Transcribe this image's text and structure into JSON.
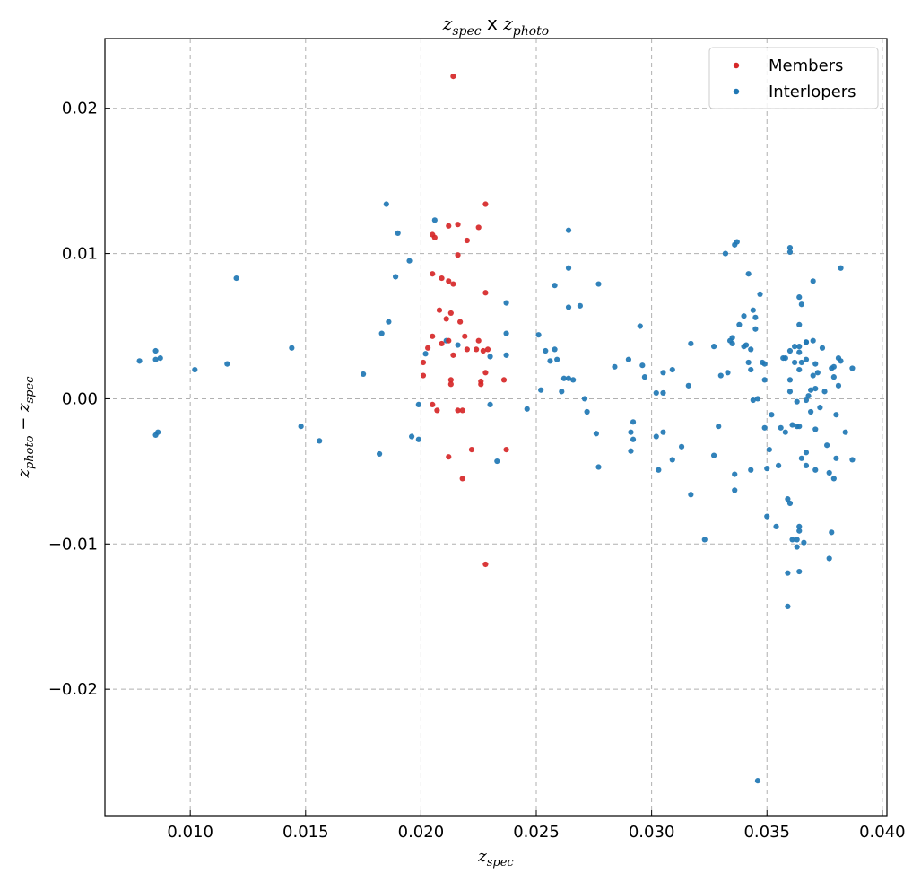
{
  "chart_data": {
    "type": "scatter",
    "title_main": "z",
    "title_sub1": "spec",
    "title_x": " x ",
    "title_sub2": "photo",
    "xlabel_main": "z",
    "xlabel_sub": "spec",
    "ylabel_main1": "z",
    "ylabel_sub1": "photo",
    "ylabel_op": " − ",
    "ylabel_main2": "z",
    "ylabel_sub2": "spec",
    "xlim": [
      0.0063,
      0.0402
    ],
    "ylim": [
      -0.0287,
      0.0248
    ],
    "xticks": [
      0.01,
      0.015,
      0.02,
      0.025,
      0.03,
      0.035,
      0.04
    ],
    "xtick_labels": [
      "0.010",
      "0.015",
      "0.020",
      "0.025",
      "0.030",
      "0.035",
      "0.040"
    ],
    "yticks": [
      0.02,
      0.01,
      0.0,
      -0.01,
      -0.02
    ],
    "ytick_labels": [
      "0.02",
      "0.01",
      "0.00",
      "−0.01",
      "−0.02"
    ],
    "grid": true,
    "legend_position": "top-right",
    "series": [
      {
        "name": "Members",
        "color": "#d62728",
        "points": [
          [
            0.0214,
            0.0222
          ],
          [
            0.0228,
            0.0134
          ],
          [
            0.0205,
            0.0113
          ],
          [
            0.0206,
            0.0111
          ],
          [
            0.0216,
            0.012
          ],
          [
            0.0212,
            0.0119
          ],
          [
            0.0225,
            0.0118
          ],
          [
            0.022,
            0.0109
          ],
          [
            0.0216,
            0.0099
          ],
          [
            0.0205,
            0.0086
          ],
          [
            0.0209,
            0.0083
          ],
          [
            0.0212,
            0.0081
          ],
          [
            0.0214,
            0.0079
          ],
          [
            0.0228,
            0.0073
          ],
          [
            0.0208,
            0.0061
          ],
          [
            0.0213,
            0.0059
          ],
          [
            0.0211,
            0.0055
          ],
          [
            0.0217,
            0.0053
          ],
          [
            0.0205,
            0.0043
          ],
          [
            0.0219,
            0.0043
          ],
          [
            0.0212,
            0.004
          ],
          [
            0.0225,
            0.004
          ],
          [
            0.0209,
            0.0038
          ],
          [
            0.0203,
            0.0035
          ],
          [
            0.022,
            0.0034
          ],
          [
            0.0224,
            0.0034
          ],
          [
            0.0227,
            0.0033
          ],
          [
            0.0229,
            0.0034
          ],
          [
            0.0214,
            0.003
          ],
          [
            0.0201,
            0.0025
          ],
          [
            0.0228,
            0.0018
          ],
          [
            0.0201,
            0.0016
          ],
          [
            0.0236,
            0.0013
          ],
          [
            0.0213,
            0.0013
          ],
          [
            0.0213,
            0.001
          ],
          [
            0.0226,
            0.0012
          ],
          [
            0.0226,
            0.001
          ],
          [
            0.0205,
            -0.0004
          ],
          [
            0.0207,
            -0.0008
          ],
          [
            0.0216,
            -0.0008
          ],
          [
            0.0218,
            -0.0008
          ],
          [
            0.0222,
            -0.0035
          ],
          [
            0.0237,
            -0.0035
          ],
          [
            0.0212,
            -0.004
          ],
          [
            0.0218,
            -0.0055
          ],
          [
            0.0228,
            -0.0114
          ]
        ]
      },
      {
        "name": "Interlopers",
        "color": "#1f77b4",
        "points": [
          [
            0.0078,
            0.0026
          ],
          [
            0.0085,
            0.0033
          ],
          [
            0.0085,
            0.0027
          ],
          [
            0.0087,
            0.0028
          ],
          [
            0.0085,
            -0.0025
          ],
          [
            0.0086,
            -0.0023
          ],
          [
            0.0102,
            0.002
          ],
          [
            0.0116,
            0.0024
          ],
          [
            0.012,
            0.0083
          ],
          [
            0.0144,
            0.0035
          ],
          [
            0.0148,
            -0.0019
          ],
          [
            0.0156,
            -0.0029
          ],
          [
            0.0175,
            0.0017
          ],
          [
            0.0183,
            0.0045
          ],
          [
            0.0182,
            -0.0038
          ],
          [
            0.0185,
            0.0134
          ],
          [
            0.0186,
            0.0053
          ],
          [
            0.0189,
            0.0084
          ],
          [
            0.019,
            0.0114
          ],
          [
            0.0195,
            0.0095
          ],
          [
            0.0196,
            -0.0026
          ],
          [
            0.0199,
            -0.0004
          ],
          [
            0.0199,
            -0.0028
          ],
          [
            0.0202,
            0.0031
          ],
          [
            0.0206,
            0.0123
          ],
          [
            0.0211,
            0.004
          ],
          [
            0.0216,
            0.0037
          ],
          [
            0.023,
            0.0029
          ],
          [
            0.023,
            -0.0004
          ],
          [
            0.0233,
            -0.0043
          ],
          [
            0.0237,
            0.0066
          ],
          [
            0.0237,
            0.0045
          ],
          [
            0.0237,
            0.003
          ],
          [
            0.0246,
            -0.0007
          ],
          [
            0.0251,
            0.0044
          ],
          [
            0.0252,
            0.0006
          ],
          [
            0.0254,
            0.0033
          ],
          [
            0.0256,
            0.0026
          ],
          [
            0.0258,
            0.0078
          ],
          [
            0.0258,
            0.0034
          ],
          [
            0.0259,
            0.0027
          ],
          [
            0.0261,
            0.0005
          ],
          [
            0.0262,
            0.0014
          ],
          [
            0.0264,
            0.0116
          ],
          [
            0.0264,
            0.009
          ],
          [
            0.0264,
            0.0063
          ],
          [
            0.0264,
            0.0014
          ],
          [
            0.0266,
            0.0013
          ],
          [
            0.0269,
            0.0064
          ],
          [
            0.0271,
            0.0
          ],
          [
            0.0272,
            -0.0009
          ],
          [
            0.0276,
            -0.0024
          ],
          [
            0.0277,
            0.0079
          ],
          [
            0.0277,
            -0.0047
          ],
          [
            0.0284,
            0.0022
          ],
          [
            0.029,
            0.0027
          ],
          [
            0.0291,
            -0.0023
          ],
          [
            0.0292,
            -0.0016
          ],
          [
            0.0292,
            -0.0028
          ],
          [
            0.0291,
            -0.0036
          ],
          [
            0.0295,
            0.005
          ],
          [
            0.0296,
            0.0023
          ],
          [
            0.0297,
            0.0015
          ],
          [
            0.0302,
            0.0004
          ],
          [
            0.0302,
            -0.0026
          ],
          [
            0.0303,
            -0.0049
          ],
          [
            0.0305,
            0.0004
          ],
          [
            0.0305,
            -0.0023
          ],
          [
            0.0305,
            0.0018
          ],
          [
            0.0309,
            0.002
          ],
          [
            0.0309,
            -0.0042
          ],
          [
            0.0313,
            -0.0033
          ],
          [
            0.0316,
            0.0009
          ],
          [
            0.0317,
            0.0038
          ],
          [
            0.0317,
            -0.0066
          ],
          [
            0.0323,
            -0.0097
          ],
          [
            0.0327,
            0.0036
          ],
          [
            0.0327,
            -0.0039
          ],
          [
            0.0329,
            -0.0019
          ],
          [
            0.033,
            0.0016
          ],
          [
            0.0332,
            0.01
          ],
          [
            0.0333,
            0.0018
          ],
          [
            0.0334,
            0.004
          ],
          [
            0.0335,
            0.0042
          ],
          [
            0.0335,
            0.0038
          ],
          [
            0.0336,
            0.0106
          ],
          [
            0.0337,
            0.0108
          ],
          [
            0.0336,
            -0.0052
          ],
          [
            0.0336,
            -0.0063
          ],
          [
            0.0338,
            0.0051
          ],
          [
            0.034,
            0.0057
          ],
          [
            0.034,
            0.0036
          ],
          [
            0.0341,
            0.0037
          ],
          [
            0.0342,
            0.0086
          ],
          [
            0.0342,
            0.0025
          ],
          [
            0.0343,
            0.0034
          ],
          [
            0.0343,
            0.002
          ],
          [
            0.0343,
            -0.0049
          ],
          [
            0.0344,
            -0.0001
          ],
          [
            0.0344,
            0.0061
          ],
          [
            0.0345,
            0.0056
          ],
          [
            0.0345,
            0.0048
          ],
          [
            0.0346,
            0.0
          ],
          [
            0.0346,
            -0.0263
          ],
          [
            0.0347,
            0.0072
          ],
          [
            0.0348,
            0.0025
          ],
          [
            0.0349,
            0.0024
          ],
          [
            0.0349,
            0.0013
          ],
          [
            0.0349,
            -0.002
          ],
          [
            0.035,
            -0.0048
          ],
          [
            0.035,
            -0.0081
          ],
          [
            0.0351,
            -0.0035
          ],
          [
            0.0352,
            -0.0011
          ],
          [
            0.0354,
            -0.0088
          ],
          [
            0.0355,
            -0.0046
          ],
          [
            0.0356,
            -0.002
          ],
          [
            0.0357,
            0.0028
          ],
          [
            0.0358,
            0.0028
          ],
          [
            0.0358,
            -0.0023
          ],
          [
            0.0359,
            -0.0069
          ],
          [
            0.0359,
            -0.012
          ],
          [
            0.0359,
            -0.0143
          ],
          [
            0.036,
            0.0104
          ],
          [
            0.036,
            0.0101
          ],
          [
            0.036,
            0.0033
          ],
          [
            0.036,
            0.0013
          ],
          [
            0.036,
            0.0005
          ],
          [
            0.0361,
            -0.0018
          ],
          [
            0.036,
            -0.0072
          ],
          [
            0.0361,
            -0.0097
          ],
          [
            0.0362,
            0.0036
          ],
          [
            0.0362,
            0.0025
          ],
          [
            0.0363,
            -0.0002
          ],
          [
            0.0363,
            -0.0019
          ],
          [
            0.0363,
            -0.0097
          ],
          [
            0.0363,
            -0.0102
          ],
          [
            0.0364,
            0.007
          ],
          [
            0.0364,
            0.0051
          ],
          [
            0.0364,
            0.0036
          ],
          [
            0.0364,
            0.0032
          ],
          [
            0.0364,
            0.002
          ],
          [
            0.0364,
            -0.0019
          ],
          [
            0.0364,
            -0.0088
          ],
          [
            0.0364,
            -0.0091
          ],
          [
            0.0364,
            -0.0119
          ],
          [
            0.0365,
            0.0065
          ],
          [
            0.0365,
            0.0025
          ],
          [
            0.0365,
            -0.0041
          ],
          [
            0.0366,
            -0.0099
          ],
          [
            0.0367,
            0.0039
          ],
          [
            0.0367,
            0.0039
          ],
          [
            0.0367,
            0.0027
          ],
          [
            0.0367,
            -0.0001
          ],
          [
            0.0367,
            -0.0037
          ],
          [
            0.0367,
            -0.0046
          ],
          [
            0.0368,
            0.0002
          ],
          [
            0.0369,
            0.0006
          ],
          [
            0.0369,
            -0.0009
          ],
          [
            0.037,
            0.004
          ],
          [
            0.037,
            0.0081
          ],
          [
            0.037,
            0.0016
          ],
          [
            0.0371,
            0.0024
          ],
          [
            0.0371,
            0.0007
          ],
          [
            0.0371,
            -0.0021
          ],
          [
            0.0371,
            -0.0049
          ],
          [
            0.0372,
            0.0018
          ],
          [
            0.0373,
            -0.0006
          ],
          [
            0.0374,
            0.0035
          ],
          [
            0.0375,
            0.0005
          ],
          [
            0.0376,
            -0.0032
          ],
          [
            0.0377,
            -0.0051
          ],
          [
            0.0377,
            -0.011
          ],
          [
            0.0378,
            0.0021
          ],
          [
            0.0378,
            -0.0092
          ],
          [
            0.0379,
            0.0015
          ],
          [
            0.0379,
            0.0022
          ],
          [
            0.0379,
            -0.0055
          ],
          [
            0.038,
            -0.0011
          ],
          [
            0.038,
            -0.0041
          ],
          [
            0.0381,
            0.0028
          ],
          [
            0.0381,
            0.0009
          ],
          [
            0.0382,
            0.0026
          ],
          [
            0.0382,
            0.009
          ],
          [
            0.0384,
            -0.0023
          ],
          [
            0.0387,
            0.0021
          ],
          [
            0.0387,
            -0.0042
          ]
        ]
      }
    ]
  }
}
